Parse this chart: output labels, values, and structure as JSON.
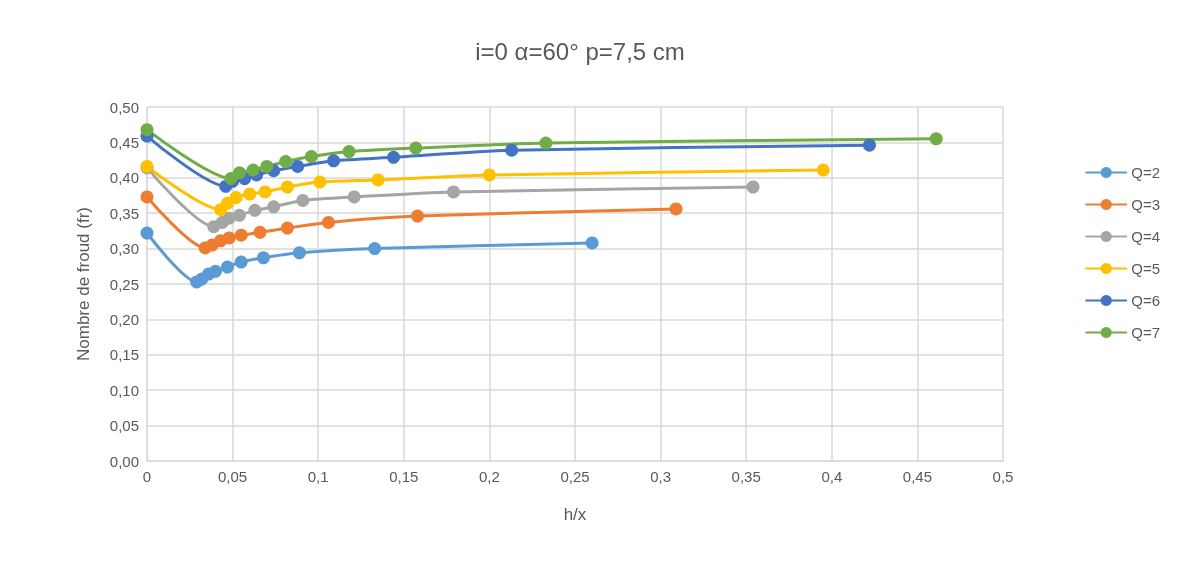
{
  "chart_data": {
    "type": "line",
    "title": "i=0 α=60° p=7,5 cm",
    "xlabel": "h/x",
    "ylabel": "Nombre de froud (fr)",
    "xlim": [
      0,
      0.5
    ],
    "ylim": [
      0,
      0.5
    ],
    "xticks": [
      0,
      {
        "value": 0.05,
        "label": "0,05"
      },
      {
        "value": 0.1,
        "label": "0,1"
      },
      {
        "value": 0.15,
        "label": "0,15"
      },
      {
        "value": 0.2,
        "label": "0,2"
      },
      {
        "value": 0.25,
        "label": "0,25"
      },
      {
        "value": 0.3,
        "label": "0,3"
      },
      {
        "value": 0.35,
        "label": "0,35"
      },
      {
        "value": 0.4,
        "label": "0,4"
      },
      {
        "value": 0.45,
        "label": "0,45"
      },
      {
        "value": 0.5,
        "label": "0,5"
      }
    ],
    "yticks": [
      {
        "value": 0,
        "label": "0,00"
      },
      {
        "value": 0.05,
        "label": "0,05"
      },
      {
        "value": 0.1,
        "label": "0,10"
      },
      {
        "value": 0.15,
        "label": "0,15"
      },
      {
        "value": 0.2,
        "label": "0,20"
      },
      {
        "value": 0.25,
        "label": "0,25"
      },
      {
        "value": 0.3,
        "label": "0,30"
      },
      {
        "value": 0.35,
        "label": "0,35"
      },
      {
        "value": 0.4,
        "label": "0,40"
      },
      {
        "value": 0.45,
        "label": "0,45"
      },
      {
        "value": 0.5,
        "label": "0,50"
      }
    ],
    "grid": true,
    "legend": "right",
    "marker": "circle",
    "line_style": "solid",
    "series": [
      {
        "name": "Q=2",
        "color": "#5b9bd5",
        "x": [
          0,
          0.029,
          0.032,
          0.036,
          0.04,
          0.047,
          0.055,
          0.068,
          0.089,
          0.133,
          0.26
        ],
        "values": [
          0.322,
          0.253,
          0.257,
          0.264,
          0.268,
          0.274,
          0.281,
          0.287,
          0.294,
          0.3,
          0.308
        ]
      },
      {
        "name": "Q=3",
        "color": "#ed7d31",
        "x": [
          0,
          0.034,
          0.038,
          0.043,
          0.048,
          0.055,
          0.066,
          0.082,
          0.106,
          0.158,
          0.309
        ],
        "values": [
          0.373,
          0.301,
          0.305,
          0.311,
          0.315,
          0.319,
          0.323,
          0.329,
          0.337,
          0.346,
          0.356
        ]
      },
      {
        "name": "Q=4",
        "color": "#a5a5a5",
        "x": [
          0,
          0.039,
          0.044,
          0.048,
          0.054,
          0.063,
          0.074,
          0.091,
          0.121,
          0.179,
          0.354
        ],
        "values": [
          0.414,
          0.331,
          0.337,
          0.343,
          0.347,
          0.354,
          0.359,
          0.368,
          0.373,
          0.38,
          0.387
        ]
      },
      {
        "name": "Q=5",
        "color": "#ffc000",
        "x": [
          0,
          0.043,
          0.047,
          0.052,
          0.06,
          0.069,
          0.082,
          0.101,
          0.135,
          0.2,
          0.395
        ],
        "values": [
          0.416,
          0.355,
          0.364,
          0.372,
          0.377,
          0.38,
          0.387,
          0.394,
          0.397,
          0.404,
          0.411
        ]
      },
      {
        "name": "Q=6",
        "color": "#4472c4",
        "x": [
          0,
          0.046,
          0.05,
          0.057,
          0.064,
          0.074,
          0.088,
          0.109,
          0.144,
          0.213,
          0.422
        ],
        "values": [
          0.459,
          0.388,
          0.395,
          0.399,
          0.404,
          0.41,
          0.416,
          0.424,
          0.429,
          0.439,
          0.446
        ]
      },
      {
        "name": "Q=7",
        "color": "#70ad47",
        "x": [
          0,
          0.049,
          0.054,
          0.062,
          0.07,
          0.081,
          0.096,
          0.118,
          0.157,
          0.233,
          0.461
        ],
        "values": [
          0.468,
          0.399,
          0.407,
          0.411,
          0.416,
          0.423,
          0.43,
          0.437,
          0.442,
          0.449,
          0.455
        ]
      }
    ]
  }
}
